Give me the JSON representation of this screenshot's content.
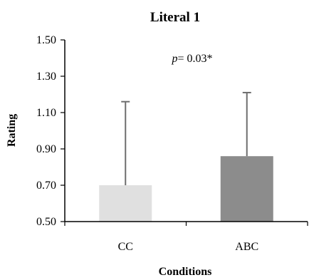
{
  "chart_data": {
    "type": "bar",
    "title": "Literal 1",
    "xlabel": "Conditions",
    "ylabel": "Rating",
    "categories": [
      "CC",
      "ABC"
    ],
    "values": [
      0.7,
      0.86
    ],
    "error_upper": [
      1.16,
      1.21
    ],
    "ylim": [
      0.5,
      1.5
    ],
    "yticks": [
      "0.50",
      "0.70",
      "0.90",
      "1.10",
      "1.30",
      "1.50"
    ],
    "annotation": {
      "italic": "p",
      "text": "= 0.03*"
    },
    "bar_colors": [
      "#e0e0e0",
      "#8c8c8c"
    ],
    "error_color": "#6e6e6e",
    "grid": false,
    "legend": "none"
  }
}
